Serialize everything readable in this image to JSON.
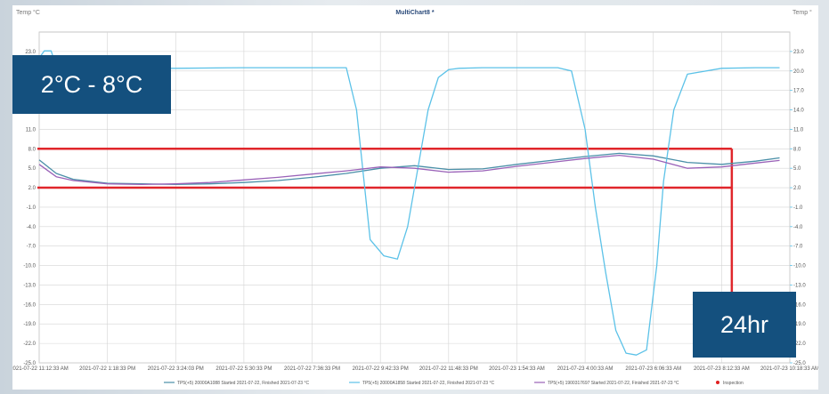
{
  "overlay": {
    "range_label": "2°C - 8°C",
    "duration_label": "24hr",
    "highlight_color": "#e0262b",
    "badge_color": "#14507e"
  },
  "chart_data": {
    "type": "line",
    "title": "MultiChart8 *",
    "ylabel_left": "Temp °C",
    "ylabel_right": "Temp °",
    "ylim": [
      -25,
      26
    ],
    "y_ticks": [
      23.0,
      20.0,
      17.0,
      14.0,
      11.0,
      8.0,
      5.0,
      2.0,
      -1.0,
      -4.0,
      -7.0,
      -10.0,
      -13.0,
      -16.0,
      -19.0,
      -22.0,
      -25.0
    ],
    "y_tick_labels": [
      "23.0",
      "20.0",
      "17.0",
      "14.0",
      "11.0",
      "8.0",
      "5.0",
      "2.0",
      "-1.0",
      "-4.0",
      "-7.0",
      "-10.0",
      "-13.0",
      "-16.0",
      "-19.0",
      "-22.0",
      "-25.0"
    ],
    "x_tick_labels": [
      "2021-07-22 11:12:33 AM",
      "2021-07-22 1:18:33 PM",
      "2021-07-22 3:24:03 PM",
      "2021-07-22 5:30:33 PM",
      "2021-07-22 7:36:33 PM",
      "2021-07-22 9:42:33 PM",
      "2021-07-22 11:48:33 PM",
      "2021-07-23 1:54:33 AM",
      "2021-07-23 4:00:33 AM",
      "2021-07-23 6:06:33 AM",
      "2021-07-23 8:12:33 AM",
      "2021-07-23 10:18:33 AM"
    ],
    "x_range": [
      0,
      22
    ],
    "grid": true,
    "legend_position": "bottom",
    "highlight_band": [
      2,
      8
    ],
    "highlight_end_x": 20.3,
    "series": [
      {
        "name": "TP5(+5) 20000A1088 Started 2021-07-22, Finished 2021-07-23 °C",
        "color": "#4a8fa8",
        "x": [
          0,
          0.5,
          1,
          2,
          3,
          4,
          5,
          6,
          7,
          8,
          9,
          10,
          11,
          12,
          13,
          14,
          15,
          16,
          17,
          18,
          19,
          20,
          21,
          21.7
        ],
        "y": [
          6.3,
          4.2,
          3.3,
          2.7,
          2.6,
          2.5,
          2.6,
          2.8,
          3.1,
          3.6,
          4.2,
          5.0,
          5.4,
          4.8,
          4.9,
          5.6,
          6.2,
          6.8,
          7.3,
          6.9,
          5.9,
          5.6,
          6.1,
          6.6
        ]
      },
      {
        "name": "TP5(+5) 20000A1858 Started 2021-07-22, Finished 2021-07-23 °C",
        "color": "#5cc2e8",
        "x": [
          0,
          0.15,
          0.35,
          0.45,
          0.6,
          2,
          4,
          6,
          8,
          9,
          9.3,
          9.7,
          10.1,
          10.5,
          10.8,
          11.1,
          11.4,
          11.7,
          12,
          12.3,
          13,
          14,
          15.2,
          15.6,
          16,
          16.3,
          16.6,
          16.9,
          17.2,
          17.5,
          17.8,
          18.1,
          18.3,
          18.6,
          19,
          20,
          21,
          21.7
        ],
        "y": [
          22.0,
          23.1,
          23.1,
          21.5,
          20.4,
          20.4,
          20.4,
          20.5,
          20.5,
          20.5,
          14.0,
          -6.0,
          -8.5,
          -9.0,
          -4.0,
          5.0,
          14.0,
          19.0,
          20.2,
          20.4,
          20.5,
          20.5,
          20.5,
          20.0,
          11.0,
          -1.0,
          -11.0,
          -20.0,
          -23.5,
          -23.8,
          -23.0,
          -10.0,
          3.0,
          14.0,
          19.5,
          20.4,
          20.5,
          20.5
        ]
      },
      {
        "name": "TP5(+5) 1900317697 Started 2021-07-22, Finished 2021-07-23 °C",
        "color": "#9a62b8",
        "x": [
          0,
          0.5,
          1,
          2,
          3,
          4,
          5,
          6,
          7,
          8,
          9,
          10,
          11,
          12,
          13,
          14,
          15,
          16,
          17,
          18,
          19,
          20,
          21,
          21.7
        ],
        "y": [
          5.6,
          3.7,
          3.1,
          2.6,
          2.5,
          2.6,
          2.8,
          3.2,
          3.6,
          4.1,
          4.6,
          5.2,
          5.0,
          4.4,
          4.6,
          5.3,
          5.9,
          6.5,
          7.0,
          6.4,
          5.0,
          5.2,
          5.8,
          6.2
        ]
      }
    ],
    "inspection": {
      "name": "Inspection",
      "color": "#e02020",
      "x": 0.3,
      "y": 22.0
    }
  }
}
